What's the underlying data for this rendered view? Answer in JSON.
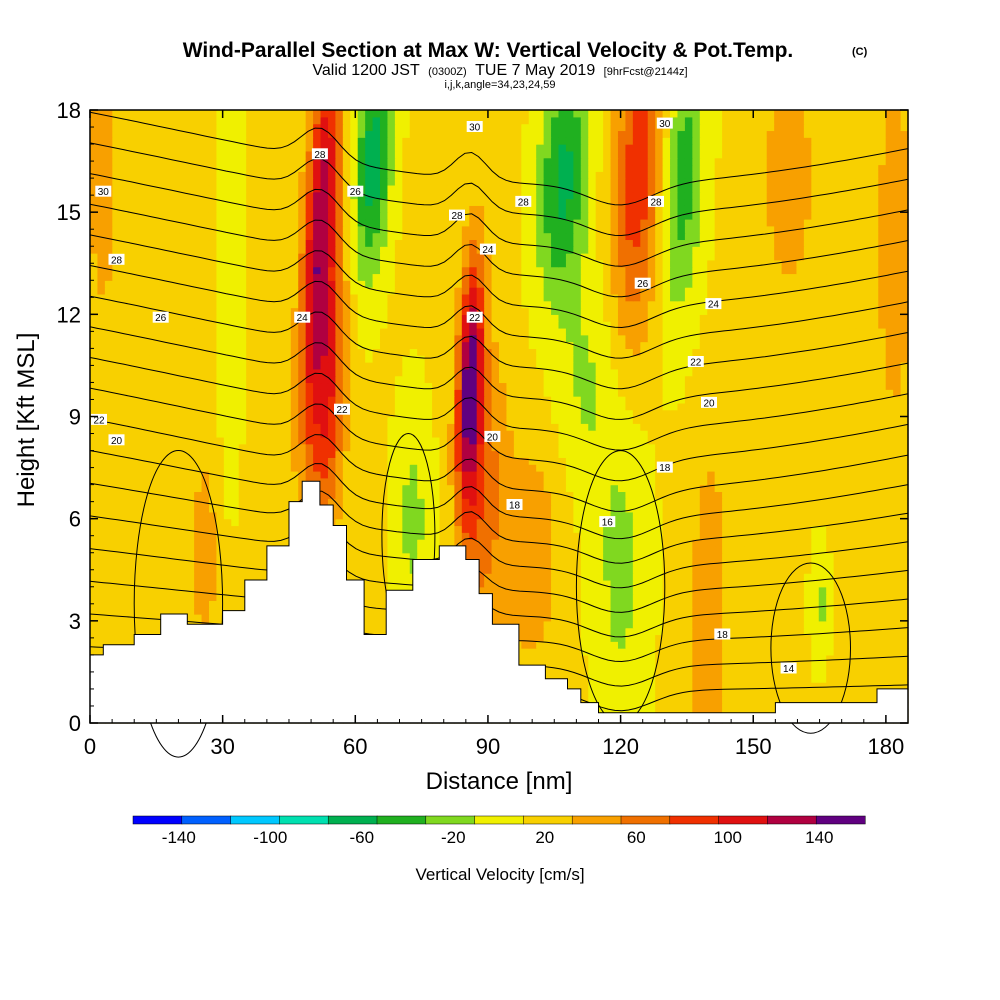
{
  "header": {
    "title": "Wind-Parallel Section at Max W: Vertical Velocity & Pot.Temp.",
    "copyright": "(C)",
    "valid_prefix": "Valid 1200 JST",
    "valid_utc": "(0300Z)",
    "valid_date": "TUE 7 May 2019",
    "forecast": "[9hrFcst@2144z]",
    "indices": "i,j,k,angle=34,23,24,59"
  },
  "colors": {
    "bins": [
      "#0000ff",
      "#0060ff",
      "#00c8ff",
      "#00e0b0",
      "#00b050",
      "#20b020",
      "#80d820",
      "#f0f000",
      "#f8d000",
      "#f8a000",
      "#f07000",
      "#f03000",
      "#e01010",
      "#b00040",
      "#600080"
    ]
  },
  "chart_data": {
    "type": "heatmap",
    "xlabel": "Distance [nm]",
    "ylabel": "Height [Kft MSL]",
    "xlim": [
      0,
      185
    ],
    "ylim": [
      0,
      18
    ],
    "x_ticks": [
      "0",
      "30",
      "60",
      "90",
      "120",
      "150",
      "180"
    ],
    "y_ticks": [
      "0",
      "3",
      "6",
      "9",
      "12",
      "15",
      "18"
    ],
    "colorbar": {
      "title": "Vertical Velocity [cm/s]",
      "labels": [
        "-140",
        "-100",
        "-60",
        "-20",
        "20",
        "60",
        "100",
        "140"
      ],
      "bin_edges": [
        -160,
        -140,
        -120,
        -100,
        -80,
        -60,
        -40,
        -20,
        0,
        20,
        40,
        60,
        80,
        100,
        120,
        140,
        160
      ]
    },
    "terrain": [
      [
        0,
        2
      ],
      [
        3,
        2.3
      ],
      [
        10,
        2.6
      ],
      [
        16,
        3.2
      ],
      [
        22,
        2.9
      ],
      [
        30,
        3.3
      ],
      [
        35,
        4.2
      ],
      [
        40,
        5.2
      ],
      [
        45,
        6.5
      ],
      [
        48,
        7.1
      ],
      [
        52,
        6.4
      ],
      [
        55,
        5.8
      ],
      [
        58,
        4.2
      ],
      [
        62,
        2.6
      ],
      [
        67,
        3.9
      ],
      [
        73,
        4.8
      ],
      [
        79,
        5.2
      ],
      [
        85,
        4.8
      ],
      [
        88,
        3.8
      ],
      [
        91,
        2.9
      ],
      [
        97,
        1.7
      ],
      [
        103,
        1.3
      ],
      [
        108,
        1.0
      ],
      [
        111,
        0.6
      ],
      [
        115,
        0.3
      ],
      [
        122,
        0.3
      ],
      [
        152,
        0.3
      ],
      [
        155,
        0.6
      ],
      [
        175,
        0.6
      ],
      [
        178,
        1.0
      ],
      [
        185,
        1.0
      ]
    ],
    "vertical_velocity_features": [
      {
        "x": 52,
        "y": 14.5,
        "sx": 2.5,
        "sy": 4.0,
        "tilt": 0.45,
        "w": 110
      },
      {
        "x": 54,
        "y": 9.5,
        "sx": 2.8,
        "sy": 3.0,
        "tilt": 0.35,
        "w": 70
      },
      {
        "x": 86,
        "y": 10.0,
        "sx": 2.0,
        "sy": 2.6,
        "tilt": 0.25,
        "w": 130
      },
      {
        "x": 89,
        "y": 6.5,
        "sx": 3.5,
        "sy": 3.0,
        "tilt": 0.3,
        "w": 45
      },
      {
        "x": 124,
        "y": 16.0,
        "sx": 4.0,
        "sy": 3.5,
        "tilt": 0.35,
        "w": 70
      },
      {
        "x": 64,
        "y": 16.5,
        "sx": 3.0,
        "sy": 2.5,
        "tilt": 0.4,
        "w": -75
      },
      {
        "x": 107,
        "y": 16.0,
        "sx": 4.0,
        "sy": 2.5,
        "tilt": 0.4,
        "w": -70
      },
      {
        "x": 134,
        "y": 16.0,
        "sx": 3.5,
        "sy": 3.0,
        "tilt": 0.35,
        "w": -55
      },
      {
        "x": 120,
        "y": 4.5,
        "sx": 4.5,
        "sy": 3.5,
        "tilt": 0.0,
        "w": -30
      },
      {
        "x": 73,
        "y": 6.0,
        "sx": 3.0,
        "sy": 2.5,
        "tilt": 0.0,
        "w": -30
      },
      {
        "x": 165,
        "y": 3.5,
        "sx": 1.5,
        "sy": 1.2,
        "tilt": 0.0,
        "w": -28
      },
      {
        "x": 100,
        "y": 5.0,
        "sx": 5.0,
        "sy": 2.5,
        "tilt": 0.2,
        "w": 30
      },
      {
        "x": 140,
        "y": 3.0,
        "sx": 3.0,
        "sy": 3.5,
        "tilt": 0.1,
        "w": 35
      },
      {
        "x": 26,
        "y": 5.0,
        "sx": 2.5,
        "sy": 2.5,
        "tilt": 0.0,
        "w": 25
      },
      {
        "x": 3,
        "y": 16.0,
        "sx": 2.5,
        "sy": 3.0,
        "tilt": 0.0,
        "w": 30
      },
      {
        "x": 182,
        "y": 14.0,
        "sx": 3.0,
        "sy": 4.0,
        "tilt": 0.0,
        "w": 30
      },
      {
        "x": 32,
        "y": 14.0,
        "sx": 2.0,
        "sy": 5.0,
        "tilt": 0.1,
        "w": -25
      },
      {
        "x": 112,
        "y": 10.0,
        "sx": 5.0,
        "sy": 2.5,
        "tilt": 0.3,
        "w": -25
      },
      {
        "x": 158,
        "y": 16.0,
        "sx": 5.0,
        "sy": 3.0,
        "tilt": 0.0,
        "w": 25
      }
    ],
    "theta_labels": [
      {
        "text": "30",
        "x": 3,
        "y": 15.6
      },
      {
        "text": "28",
        "x": 6,
        "y": 13.6
      },
      {
        "text": "26",
        "x": 16,
        "y": 11.9
      },
      {
        "text": "24",
        "x": 48,
        "y": 11.9
      },
      {
        "text": "28",
        "x": 52,
        "y": 16.7
      },
      {
        "text": "26",
        "x": 60,
        "y": 15.6
      },
      {
        "text": "22",
        "x": 57,
        "y": 9.2
      },
      {
        "text": "22",
        "x": 0,
        "y": 8.9
      },
      {
        "text": "20",
        "x": 6,
        "y": 8.3
      },
      {
        "text": "30",
        "x": 87,
        "y": 17.5
      },
      {
        "text": "28",
        "x": 83,
        "y": 14.9
      },
      {
        "text": "24",
        "x": 90,
        "y": 13.9
      },
      {
        "text": "22",
        "x": 87,
        "y": 11.9
      },
      {
        "text": "20",
        "x": 91,
        "y": 8.4
      },
      {
        "text": "18",
        "x": 96,
        "y": 6.4
      },
      {
        "text": "28",
        "x": 98,
        "y": 15.3
      },
      {
        "text": "30",
        "x": 130,
        "y": 17.6
      },
      {
        "text": "28",
        "x": 128,
        "y": 15.3
      },
      {
        "text": "26",
        "x": 125,
        "y": 12.9
      },
      {
        "text": "24",
        "x": 141,
        "y": 12.3
      },
      {
        "text": "22",
        "x": 137,
        "y": 10.6
      },
      {
        "text": "20",
        "x": 140,
        "y": 9.4
      },
      {
        "text": "18",
        "x": 130,
        "y": 7.5
      },
      {
        "text": "16",
        "x": 117,
        "y": 5.9
      },
      {
        "text": "18",
        "x": 143,
        "y": 2.6
      },
      {
        "text": "14",
        "x": 158,
        "y": 1.6
      }
    ]
  }
}
